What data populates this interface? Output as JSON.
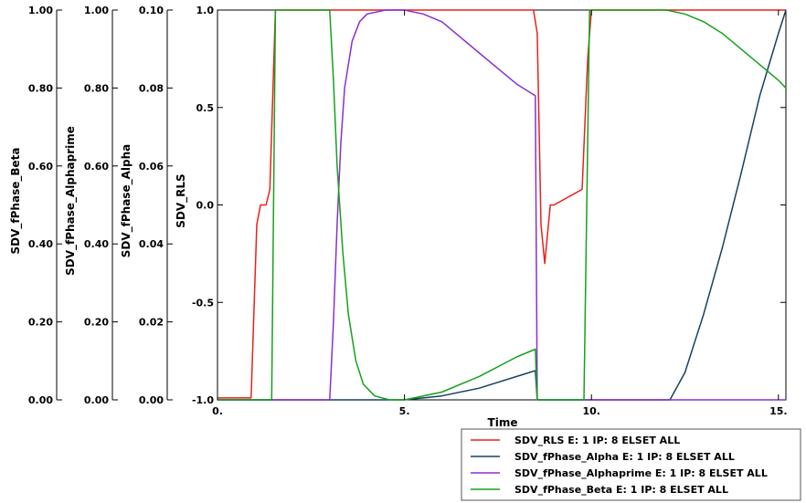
{
  "chart_data": {
    "type": "line",
    "xlabel": "Time",
    "xlim": [
      0,
      15.2
    ],
    "xticks": [
      0,
      5,
      10,
      15
    ],
    "xtick_labels": [
      "0.",
      "5.",
      "10.",
      "15."
    ],
    "grid": false,
    "legend_position": "bottom-right",
    "y_axes": [
      {
        "id": "rls",
        "label": "SDV_RLS",
        "lim": [
          -1,
          1
        ],
        "ticks": [
          -1,
          -0.5,
          0,
          0.5,
          1
        ],
        "tick_labels": [
          "-1.0",
          "-0.5",
          "0.0",
          "0.5",
          "1.0"
        ]
      },
      {
        "id": "alpha",
        "label": "SDV_fPhase_Alpha",
        "lim": [
          0,
          0.1
        ],
        "ticks": [
          0,
          0.02,
          0.04,
          0.06,
          0.08,
          0.1
        ],
        "tick_labels": [
          "0.00",
          "0.02",
          "0.04",
          "0.06",
          "0.08",
          "0.10"
        ]
      },
      {
        "id": "alphaprime",
        "label": "SDV_fPhase_Alphaprime",
        "lim": [
          0,
          1
        ],
        "ticks": [
          0,
          0.2,
          0.4,
          0.6,
          0.8,
          1
        ],
        "tick_labels": [
          "0.00",
          "0.20",
          "0.40",
          "0.60",
          "0.80",
          "1.00"
        ]
      },
      {
        "id": "beta",
        "label": "SDV_fPhase_Beta",
        "lim": [
          0,
          1
        ],
        "ticks": [
          0,
          0.2,
          0.4,
          0.6,
          0.8,
          1
        ],
        "tick_labels": [
          "0.00",
          "0.20",
          "0.40",
          "0.60",
          "0.80",
          "1.00"
        ]
      }
    ],
    "series": [
      {
        "name": "SDV_RLS E: 1 IP: 8 ELSET ALL",
        "color": "#e8211b",
        "axis": "rls",
        "x": [
          0,
          0.9,
          1.05,
          1.15,
          1.3,
          1.4,
          1.5,
          1.55,
          1.6,
          8.45,
          8.55,
          8.65,
          8.75,
          8.9,
          9.0,
          9.75,
          9.9,
          10.0,
          10.1,
          15.2
        ],
        "y": [
          -0.99,
          -0.99,
          -0.1,
          0.0,
          0.0,
          0.08,
          0.7,
          1.0,
          1.0,
          1.0,
          0.88,
          -0.1,
          -0.3,
          0.0,
          0.0,
          0.08,
          0.75,
          1.0,
          1.0,
          1.0
        ]
      },
      {
        "name": "SDV_fPhase_Alpha E: 1 IP: 8 ELSET ALL",
        "color": "#16425f",
        "axis": "alpha",
        "x": [
          0,
          5.0,
          6.0,
          7.0,
          8.0,
          8.5,
          8.55,
          9.0,
          12.1,
          12.5,
          13.0,
          13.5,
          14.0,
          14.5,
          15.0,
          15.2
        ],
        "y": [
          0,
          0,
          0.001,
          0.003,
          0.006,
          0.0075,
          0,
          0,
          0,
          0.007,
          0.022,
          0.039,
          0.058,
          0.078,
          0.094,
          0.1
        ]
      },
      {
        "name": "SDV_fPhase_Alphaprime E: 1 IP: 8 ELSET ALL",
        "color": "#8a2fd0",
        "axis": "alphaprime",
        "x": [
          0,
          3.0,
          3.1,
          3.2,
          3.3,
          3.4,
          3.6,
          3.8,
          4.0,
          4.5,
          5.0,
          5.5,
          6.0,
          6.5,
          7.0,
          7.5,
          8.0,
          8.5,
          8.55,
          15.2
        ],
        "y": [
          0,
          0,
          0.2,
          0.45,
          0.66,
          0.8,
          0.92,
          0.97,
          0.99,
          1.0,
          1.0,
          0.99,
          0.97,
          0.93,
          0.89,
          0.85,
          0.81,
          0.78,
          0,
          0
        ]
      },
      {
        "name": "SDV_fPhase_Beta E: 1 IP: 8 ELSET ALL",
        "color": "#15a11a",
        "axis": "beta",
        "x": [
          0,
          1.45,
          1.55,
          3.0,
          3.1,
          3.2,
          3.35,
          3.5,
          3.7,
          3.9,
          4.2,
          4.6,
          5.0,
          6.0,
          7.0,
          8.0,
          8.5,
          8.55,
          9.8,
          9.95,
          11.0,
          12.0,
          12.5,
          13.0,
          13.5,
          14.0,
          14.5,
          15.0,
          15.2
        ],
        "y": [
          0,
          0,
          1.0,
          1.0,
          0.82,
          0.6,
          0.38,
          0.22,
          0.1,
          0.04,
          0.01,
          0.0,
          0.0,
          0.02,
          0.06,
          0.11,
          0.13,
          0,
          0,
          1.0,
          1.0,
          1.0,
          0.99,
          0.97,
          0.94,
          0.9,
          0.86,
          0.82,
          0.8
        ]
      }
    ]
  }
}
